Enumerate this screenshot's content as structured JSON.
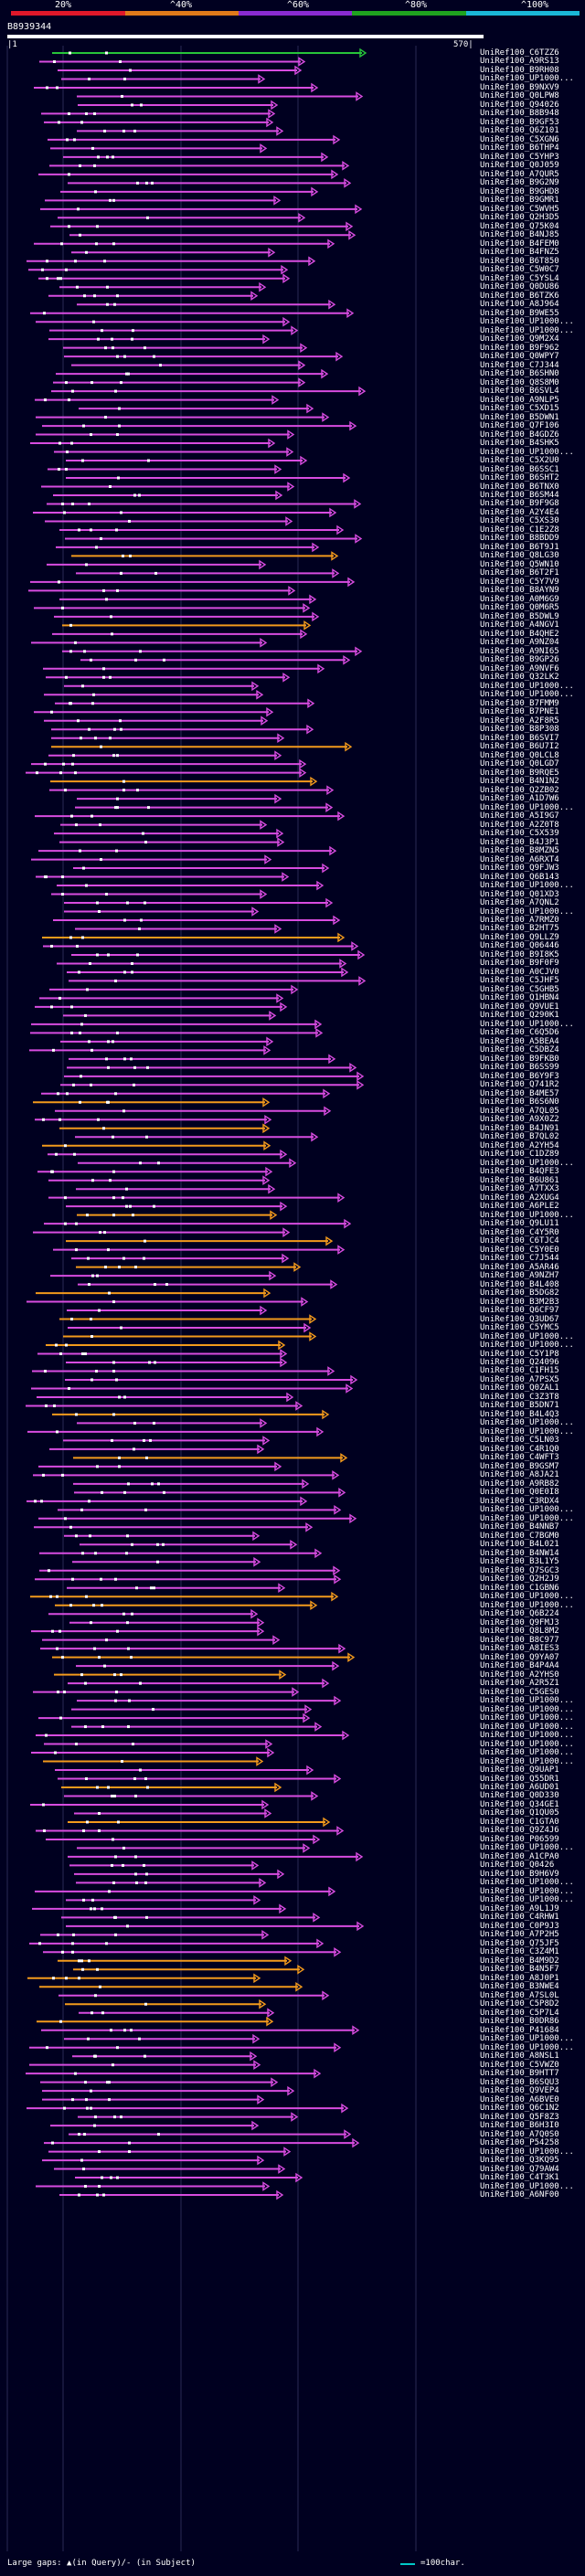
{
  "scale": {
    "labels": [
      "20%",
      "^40%",
      "^60%",
      "^80%",
      "^100%"
    ],
    "colors": [
      "#e0182a",
      "#e07a1a",
      "#8a2bd1",
      "#1fa31f",
      "#1ab7d6"
    ]
  },
  "query": {
    "id": "B8939344",
    "start": "|1",
    "end": "570|"
  },
  "colors": {
    "purple": "#d84ce0",
    "orange": "#f39a1c",
    "green": "#27c53a",
    "dot": "#ffffff"
  },
  "hits": [
    {
      "label": "UniRef100_C6TZZ6",
      "color": "green"
    },
    {
      "label": "UniRef100_A9RS13",
      "color": "purple"
    },
    {
      "label": "UniRef100_B9RH08",
      "color": "purple"
    },
    {
      "label": "UniRef100_UP1000...",
      "color": "purple"
    },
    {
      "label": "UniRef100_B9NXV9",
      "color": "purple"
    },
    {
      "label": "UniRef100_Q0LPW8",
      "color": "purple"
    },
    {
      "label": "UniRef100_Q94026",
      "color": "purple"
    },
    {
      "label": "UniRef100_B8B948",
      "color": "purple"
    },
    {
      "label": "UniRef100_B9GF53",
      "color": "purple"
    },
    {
      "label": "UniRef100_Q6Z101",
      "color": "purple"
    },
    {
      "label": "UniRef100_C5XGN6",
      "color": "purple"
    },
    {
      "label": "UniRef100_B6THP4",
      "color": "purple"
    },
    {
      "label": "UniRef100_C5YHP3",
      "color": "purple"
    },
    {
      "label": "UniRef100_Q0J059",
      "color": "purple"
    },
    {
      "label": "UniRef100_A7QUR5",
      "color": "purple"
    },
    {
      "label": "UniRef100_B9G2N9",
      "color": "purple"
    },
    {
      "label": "UniRef100_B9GHD8",
      "color": "purple"
    },
    {
      "label": "UniRef100_B9GMR1",
      "color": "purple"
    },
    {
      "label": "UniRef100_C5WVH5",
      "color": "purple"
    },
    {
      "label": "UniRef100_Q2H3D5",
      "color": "purple"
    },
    {
      "label": "UniRef100_Q75K04",
      "color": "purple"
    },
    {
      "label": "UniRef100_B4NJ85",
      "color": "purple"
    },
    {
      "label": "UniRef100_B4FEM0",
      "color": "purple"
    },
    {
      "label": "UniRef100_B4FNZ5",
      "color": "purple"
    },
    {
      "label": "UniRef100_B6T850",
      "color": "purple"
    },
    {
      "label": "UniRef100_C5W0C7",
      "color": "purple"
    },
    {
      "label": "UniRef100_C5YSL4",
      "color": "purple"
    },
    {
      "label": "UniRef100_Q0DU86",
      "color": "purple"
    },
    {
      "label": "UniRef100_B6TZK6",
      "color": "purple"
    },
    {
      "label": "UniRef100_A8J964",
      "color": "purple"
    },
    {
      "label": "UniRef100_B9WE55",
      "color": "purple"
    },
    {
      "label": "UniRef100_UP1000...",
      "color": "purple"
    },
    {
      "label": "UniRef100_UP1000...",
      "color": "purple"
    },
    {
      "label": "UniRef100_Q9M2X4",
      "color": "purple"
    },
    {
      "label": "UniRef100_B9F962",
      "color": "purple"
    },
    {
      "label": "UniRef100_Q0WPY7",
      "color": "purple"
    },
    {
      "label": "UniRef100_C7J344",
      "color": "purple"
    },
    {
      "label": "UniRef100_B6SHN0",
      "color": "purple"
    },
    {
      "label": "UniRef100_Q8S8M0",
      "color": "purple"
    },
    {
      "label": "UniRef100_B6SVL4",
      "color": "purple"
    },
    {
      "label": "UniRef100_A9NLP5",
      "color": "purple"
    },
    {
      "label": "UniRef100_C5XD15",
      "color": "purple"
    },
    {
      "label": "UniRef100_B5DWN1",
      "color": "purple"
    },
    {
      "label": "UniRef100_Q7F106",
      "color": "purple"
    },
    {
      "label": "UniRef100_B4GDZ6",
      "color": "purple"
    },
    {
      "label": "UniRef100_B4SHK5",
      "color": "purple"
    },
    {
      "label": "UniRef100_UP1000...",
      "color": "purple"
    },
    {
      "label": "UniRef100_C5X2U0",
      "color": "purple"
    },
    {
      "label": "UniRef100_B6SSC1",
      "color": "purple"
    },
    {
      "label": "UniRef100_B6SHT2",
      "color": "purple"
    },
    {
      "label": "UniRef100_B6TNX0",
      "color": "purple"
    },
    {
      "label": "UniRef100_B6SM44",
      "color": "purple"
    },
    {
      "label": "UniRef100_B9F9G8",
      "color": "purple"
    },
    {
      "label": "UniRef100_A2Y4E4",
      "color": "purple"
    },
    {
      "label": "UniRef100_C5XS30",
      "color": "purple"
    },
    {
      "label": "UniRef100_C1E2Z8",
      "color": "purple"
    },
    {
      "label": "UniRef100_B8BDD9",
      "color": "purple"
    },
    {
      "label": "UniRef100_B6T9J1",
      "color": "purple"
    },
    {
      "label": "UniRef100_Q8LG30",
      "color": "orange"
    },
    {
      "label": "UniRef100_Q5WN10",
      "color": "purple"
    },
    {
      "label": "UniRef100_B6T2F1",
      "color": "purple"
    },
    {
      "label": "UniRef100_C5Y7V9",
      "color": "purple"
    },
    {
      "label": "UniRef100_B8AYN9",
      "color": "purple"
    },
    {
      "label": "UniRef100_A0M6G9",
      "color": "purple"
    },
    {
      "label": "UniRef100_Q0M6R5",
      "color": "purple"
    },
    {
      "label": "UniRef100_B5DWL9",
      "color": "purple"
    },
    {
      "label": "UniRef100_A4NGV1",
      "color": "orange"
    },
    {
      "label": "UniRef100_B4QHE2",
      "color": "purple"
    },
    {
      "label": "UniRef100_A9NZ04",
      "color": "purple"
    },
    {
      "label": "UniRef100_A9NI65",
      "color": "purple"
    },
    {
      "label": "UniRef100_B9GP26",
      "color": "purple"
    },
    {
      "label": "UniRef100_A9NVF6",
      "color": "purple"
    },
    {
      "label": "UniRef100_Q32LK2",
      "color": "purple"
    },
    {
      "label": "UniRef100_UP1000...",
      "color": "purple"
    },
    {
      "label": "UniRef100_UP1000...",
      "color": "purple"
    },
    {
      "label": "UniRef100_B7FMM9",
      "color": "purple"
    },
    {
      "label": "UniRef100_B7PNE1",
      "color": "purple"
    },
    {
      "label": "UniRef100_A2F8R5",
      "color": "purple"
    },
    {
      "label": "UniRef100_B8P308",
      "color": "purple"
    },
    {
      "label": "UniRef100_B6SVI7",
      "color": "purple"
    },
    {
      "label": "UniRef100_B6U7I2",
      "color": "orange"
    },
    {
      "label": "UniRef100_Q0LCL8",
      "color": "purple"
    },
    {
      "label": "UniRef100_Q0LGD7",
      "color": "purple"
    },
    {
      "label": "UniRef100_B9RQE5",
      "color": "purple"
    },
    {
      "label": "UniRef100_B4N1N2",
      "color": "orange"
    },
    {
      "label": "UniRef100_Q2ZB02",
      "color": "purple"
    },
    {
      "label": "UniRef100_A1D7W6",
      "color": "purple"
    },
    {
      "label": "UniRef100_UP1000...",
      "color": "purple"
    },
    {
      "label": "UniRef100_A5I9G7",
      "color": "purple"
    },
    {
      "label": "UniRef100_A2Z0T8",
      "color": "purple"
    },
    {
      "label": "UniRef100_C5X539",
      "color": "purple"
    },
    {
      "label": "UniRef100_B4J3P1",
      "color": "purple"
    },
    {
      "label": "UniRef100_B8MZN5",
      "color": "purple"
    },
    {
      "label": "UniRef100_A6RXT4",
      "color": "purple"
    },
    {
      "label": "UniRef100_Q9FJW3",
      "color": "purple"
    },
    {
      "label": "UniRef100_Q6B143",
      "color": "purple"
    },
    {
      "label": "UniRef100_UP1000...",
      "color": "purple"
    },
    {
      "label": "UniRef100_Q01XD3",
      "color": "purple"
    },
    {
      "label": "UniRef100_A7QNL2",
      "color": "purple"
    },
    {
      "label": "UniRef100_UP1000...",
      "color": "purple"
    },
    {
      "label": "UniRef100_A7RMZ0",
      "color": "purple"
    },
    {
      "label": "UniRef100_B2HT75",
      "color": "purple"
    },
    {
      "label": "UniRef100_Q9LLZ9",
      "color": "orange"
    },
    {
      "label": "UniRef100_Q06446",
      "color": "purple"
    },
    {
      "label": "UniRef100_B9I8K5",
      "color": "purple"
    },
    {
      "label": "UniRef100_B9F0F9",
      "color": "purple"
    },
    {
      "label": "UniRef100_A0CJV0",
      "color": "purple"
    },
    {
      "label": "UniRef100_C5JHF5",
      "color": "purple"
    },
    {
      "label": "UniRef100_C5GHB5",
      "color": "purple"
    },
    {
      "label": "UniRef100_Q1HBN4",
      "color": "purple"
    },
    {
      "label": "UniRef100_Q9VUE1",
      "color": "purple"
    },
    {
      "label": "UniRef100_Q290K1",
      "color": "purple"
    },
    {
      "label": "UniRef100_UP1000...",
      "color": "purple"
    },
    {
      "label": "UniRef100_C6Q5D6",
      "color": "purple"
    },
    {
      "label": "UniRef100_A5BEA4",
      "color": "purple"
    },
    {
      "label": "UniRef100_C5DBZ4",
      "color": "purple"
    },
    {
      "label": "UniRef100_B9FKB0",
      "color": "purple"
    },
    {
      "label": "UniRef100_B6SS99",
      "color": "purple"
    },
    {
      "label": "UniRef100_B6Y9F3",
      "color": "purple"
    },
    {
      "label": "UniRef100_Q741R2",
      "color": "purple"
    },
    {
      "label": "UniRef100_B4ME57",
      "color": "purple"
    },
    {
      "label": "UniRef100_B6S6N0",
      "color": "orange"
    },
    {
      "label": "UniRef100_A7QL05",
      "color": "purple"
    },
    {
      "label": "UniRef100_A9X0Z2",
      "color": "purple"
    },
    {
      "label": "UniRef100_B4JN91",
      "color": "orange"
    },
    {
      "label": "UniRef100_B7QL02",
      "color": "purple"
    },
    {
      "label": "UniRef100_A2YH54",
      "color": "orange"
    },
    {
      "label": "UniRef100_C1DZ89",
      "color": "purple"
    },
    {
      "label": "UniRef100_UP1000...",
      "color": "purple"
    },
    {
      "label": "UniRef100_B4QFE3",
      "color": "purple"
    },
    {
      "label": "UniRef100_B6U861",
      "color": "purple"
    },
    {
      "label": "UniRef100_A7TXX3",
      "color": "purple"
    },
    {
      "label": "UniRef100_A2XUG4",
      "color": "purple"
    },
    {
      "label": "UniRef100_A6PLE2",
      "color": "purple"
    },
    {
      "label": "UniRef100_UP1000...",
      "color": "orange"
    },
    {
      "label": "UniRef100_Q9LU11",
      "color": "purple"
    },
    {
      "label": "UniRef100_C4Y5R0",
      "color": "purple"
    },
    {
      "label": "UniRef100_C6TJC4",
      "color": "orange"
    },
    {
      "label": "UniRef100_C5Y0E0",
      "color": "purple"
    },
    {
      "label": "UniRef100_C7J544",
      "color": "purple"
    },
    {
      "label": "UniRef100_A5AR46",
      "color": "orange"
    },
    {
      "label": "UniRef100_A9NZH7",
      "color": "purple"
    },
    {
      "label": "UniRef100_B4L408",
      "color": "purple"
    },
    {
      "label": "UniRef100_B5DG82",
      "color": "orange"
    },
    {
      "label": "UniRef100_B3M2B3",
      "color": "purple"
    },
    {
      "label": "UniRef100_Q6CF97",
      "color": "purple"
    },
    {
      "label": "UniRef100_Q3UD67",
      "color": "orange"
    },
    {
      "label": "UniRef100_C5YMC5",
      "color": "purple"
    },
    {
      "label": "UniRef100_UP1000...",
      "color": "orange"
    },
    {
      "label": "UniRef100_UP1000...",
      "color": "orange"
    },
    {
      "label": "UniRef100_C5Y1P8",
      "color": "purple"
    },
    {
      "label": "UniRef100_Q24096",
      "color": "purple"
    },
    {
      "label": "UniRef100_C1FH15",
      "color": "purple"
    },
    {
      "label": "UniRef100_A7PSX5",
      "color": "purple"
    },
    {
      "label": "UniRef100_Q0ZAL1",
      "color": "purple"
    },
    {
      "label": "UniRef100_C3Z3T8",
      "color": "purple"
    },
    {
      "label": "UniRef100_B5DN71",
      "color": "purple"
    },
    {
      "label": "UniRef100_B4L4Q3",
      "color": "orange"
    },
    {
      "label": "UniRef100_UP1000...",
      "color": "purple"
    },
    {
      "label": "UniRef100_UP1000...",
      "color": "purple"
    },
    {
      "label": "UniRef100_C5LN03",
      "color": "purple"
    },
    {
      "label": "UniRef100_C4R1Q0",
      "color": "purple"
    },
    {
      "label": "UniRef100_C4WFT3",
      "color": "orange"
    },
    {
      "label": "UniRef100_B9GSM7",
      "color": "purple"
    },
    {
      "label": "UniRef100_A8JA21",
      "color": "purple"
    },
    {
      "label": "UniRef100_A9RB82",
      "color": "purple"
    },
    {
      "label": "UniRef100_Q0E0I8",
      "color": "purple"
    },
    {
      "label": "UniRef100_C3RDX4",
      "color": "purple"
    },
    {
      "label": "UniRef100_UP1000...",
      "color": "purple"
    },
    {
      "label": "UniRef100_UP1000...",
      "color": "purple"
    },
    {
      "label": "UniRef100_B4NNB7",
      "color": "purple"
    },
    {
      "label": "UniRef100_C7BGM0",
      "color": "purple"
    },
    {
      "label": "UniRef100_B4L021",
      "color": "purple"
    },
    {
      "label": "UniRef100_B4NW14",
      "color": "purple"
    },
    {
      "label": "UniRef100_B3L1Y5",
      "color": "purple"
    },
    {
      "label": "UniRef100_Q7SGC3",
      "color": "purple"
    },
    {
      "label": "UniRef100_Q2H2J9",
      "color": "purple"
    },
    {
      "label": "UniRef100_C1GBN6",
      "color": "purple"
    },
    {
      "label": "UniRef100_UP1000...",
      "color": "orange"
    },
    {
      "label": "UniRef100_UP1000...",
      "color": "orange"
    },
    {
      "label": "UniRef100_Q6B224",
      "color": "purple"
    },
    {
      "label": "UniRef100_Q9FMJ3",
      "color": "purple"
    },
    {
      "label": "UniRef100_Q8L8M2",
      "color": "purple"
    },
    {
      "label": "UniRef100_B8C977",
      "color": "purple"
    },
    {
      "label": "UniRef100_A8IES3",
      "color": "purple"
    },
    {
      "label": "UniRef100_Q9YA07",
      "color": "orange"
    },
    {
      "label": "UniRef100_B4P4A4",
      "color": "purple"
    },
    {
      "label": "UniRef100_A2YHS0",
      "color": "orange"
    },
    {
      "label": "UniRef100_A2R5Z1",
      "color": "purple"
    },
    {
      "label": "UniRef100_C5GES0",
      "color": "purple"
    },
    {
      "label": "UniRef100_UP1000...",
      "color": "purple"
    },
    {
      "label": "UniRef100_UP1000...",
      "color": "purple"
    },
    {
      "label": "UniRef100_UP1000...",
      "color": "purple"
    },
    {
      "label": "UniRef100_UP1000...",
      "color": "purple"
    },
    {
      "label": "UniRef100_UP1000...",
      "color": "purple"
    },
    {
      "label": "UniRef100_UP1000...",
      "color": "purple"
    },
    {
      "label": "UniRef100_UP1000...",
      "color": "purple"
    },
    {
      "label": "UniRef100_UP1000...",
      "color": "orange"
    },
    {
      "label": "UniRef100_Q9UAP1",
      "color": "purple"
    },
    {
      "label": "UniRef100_Q55DR1",
      "color": "purple"
    },
    {
      "label": "UniRef100_A6UD01",
      "color": "orange"
    },
    {
      "label": "UniRef100_Q0D330",
      "color": "purple"
    },
    {
      "label": "UniRef100_Q34GE1",
      "color": "purple"
    },
    {
      "label": "UniRef100_Q1QU05",
      "color": "purple"
    },
    {
      "label": "UniRef100_C1GTA0",
      "color": "orange"
    },
    {
      "label": "UniRef100_Q9Z4J6",
      "color": "purple"
    },
    {
      "label": "UniRef100_P06599",
      "color": "purple"
    },
    {
      "label": "UniRef100_UP1000...",
      "color": "purple"
    },
    {
      "label": "UniRef100_A1CPA0",
      "color": "purple"
    },
    {
      "label": "UniRef100_Q0426",
      "color": "purple"
    },
    {
      "label": "UniRef100_B9H6V9",
      "color": "purple"
    },
    {
      "label": "UniRef100_UP1000...",
      "color": "purple"
    },
    {
      "label": "UniRef100_UP1000...",
      "color": "purple"
    },
    {
      "label": "UniRef100_UP1000...",
      "color": "purple"
    },
    {
      "label": "UniRef100_A9L1J9",
      "color": "purple"
    },
    {
      "label": "UniRef100_C4RHW1",
      "color": "purple"
    },
    {
      "label": "UniRef100_C0P9J3",
      "color": "purple"
    },
    {
      "label": "UniRef100_A7P2H5",
      "color": "purple"
    },
    {
      "label": "UniRef100_Q75JF5",
      "color": "purple"
    },
    {
      "label": "UniRef100_C3Z4M1",
      "color": "purple"
    },
    {
      "label": "UniRef100_B4M9D2",
      "color": "orange"
    },
    {
      "label": "UniRef100_B4N5F7",
      "color": "orange"
    },
    {
      "label": "UniRef100_A8J0P1",
      "color": "orange"
    },
    {
      "label": "UniRef100_B3NWE4",
      "color": "orange"
    },
    {
      "label": "UniRef100_A7SL0L",
      "color": "purple"
    },
    {
      "label": "UniRef100_C5P8D2",
      "color": "orange"
    },
    {
      "label": "UniRef100_C5P7L4",
      "color": "purple"
    },
    {
      "label": "UniRef100_B0DR86",
      "color": "orange"
    },
    {
      "label": "UniRef100_P41684",
      "color": "purple"
    },
    {
      "label": "UniRef100_UP1000...",
      "color": "purple"
    },
    {
      "label": "UniRef100_UP1000...",
      "color": "purple"
    },
    {
      "label": "UniRef100_A8NSL1",
      "color": "purple"
    },
    {
      "label": "UniRef100_C5VWZ0",
      "color": "purple"
    },
    {
      "label": "UniRef100_B9HTT7",
      "color": "purple"
    },
    {
      "label": "UniRef100_B6SQU3",
      "color": "purple"
    },
    {
      "label": "UniRef100_Q9VEP4",
      "color": "purple"
    },
    {
      "label": "UniRef100_A6BVE0",
      "color": "purple"
    },
    {
      "label": "UniRef100_Q6C1N2",
      "color": "purple"
    },
    {
      "label": "UniRef100_Q5F8Z3",
      "color": "purple"
    },
    {
      "label": "UniRef100_B6H3I0",
      "color": "purple"
    },
    {
      "label": "UniRef100_A7Q0S0",
      "color": "purple"
    },
    {
      "label": "UniRef100_P54258",
      "color": "purple"
    },
    {
      "label": "UniRef100_UP1000...",
      "color": "purple"
    },
    {
      "label": "UniRef100_Q3KQ95",
      "color": "purple"
    },
    {
      "label": "UniRef100_Q79AW4",
      "color": "purple"
    },
    {
      "label": "UniRef100_C4T3K1",
      "color": "purple"
    },
    {
      "label": "UniRef100_UP1000...",
      "color": "purple"
    },
    {
      "label": "UniRef100_A6NF00",
      "color": "purple"
    }
  ],
  "footer": {
    "gaps": "Large gaps: ▲(in Query)/- (in Subject)",
    "scale": "=100char."
  }
}
